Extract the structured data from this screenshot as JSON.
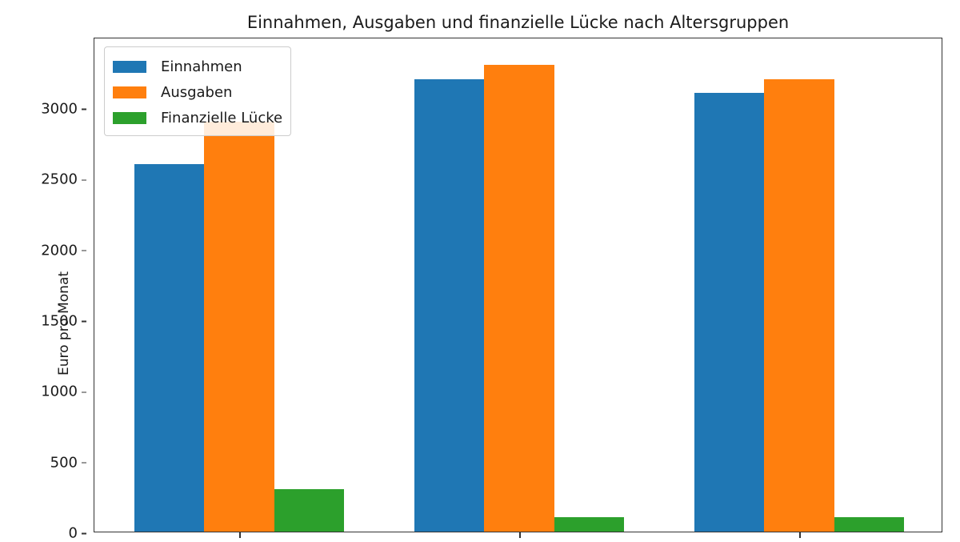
{
  "chart_data": {
    "type": "bar",
    "title": "Einnahmen, Ausgaben und finanzielle Lücke nach Altersgruppen",
    "xlabel": "",
    "ylabel": "Euro pro Monat",
    "ylim": [
      0,
      3500
    ],
    "yticks": [
      0,
      500,
      1000,
      1500,
      2000,
      2500,
      3000
    ],
    "categories": [
      "",
      "",
      ""
    ],
    "series": [
      {
        "name": "Einnahmen",
        "color": "#1f77b4",
        "values": [
          2600,
          3200,
          3100
        ]
      },
      {
        "name": "Ausgaben",
        "color": "#ff7f0e",
        "values": [
          2900,
          3300,
          3200
        ]
      },
      {
        "name": "Finanzielle Lücke",
        "color": "#2ca02c",
        "values": [
          300,
          100,
          100
        ]
      }
    ],
    "legend_position": "upper left",
    "grid": false
  }
}
